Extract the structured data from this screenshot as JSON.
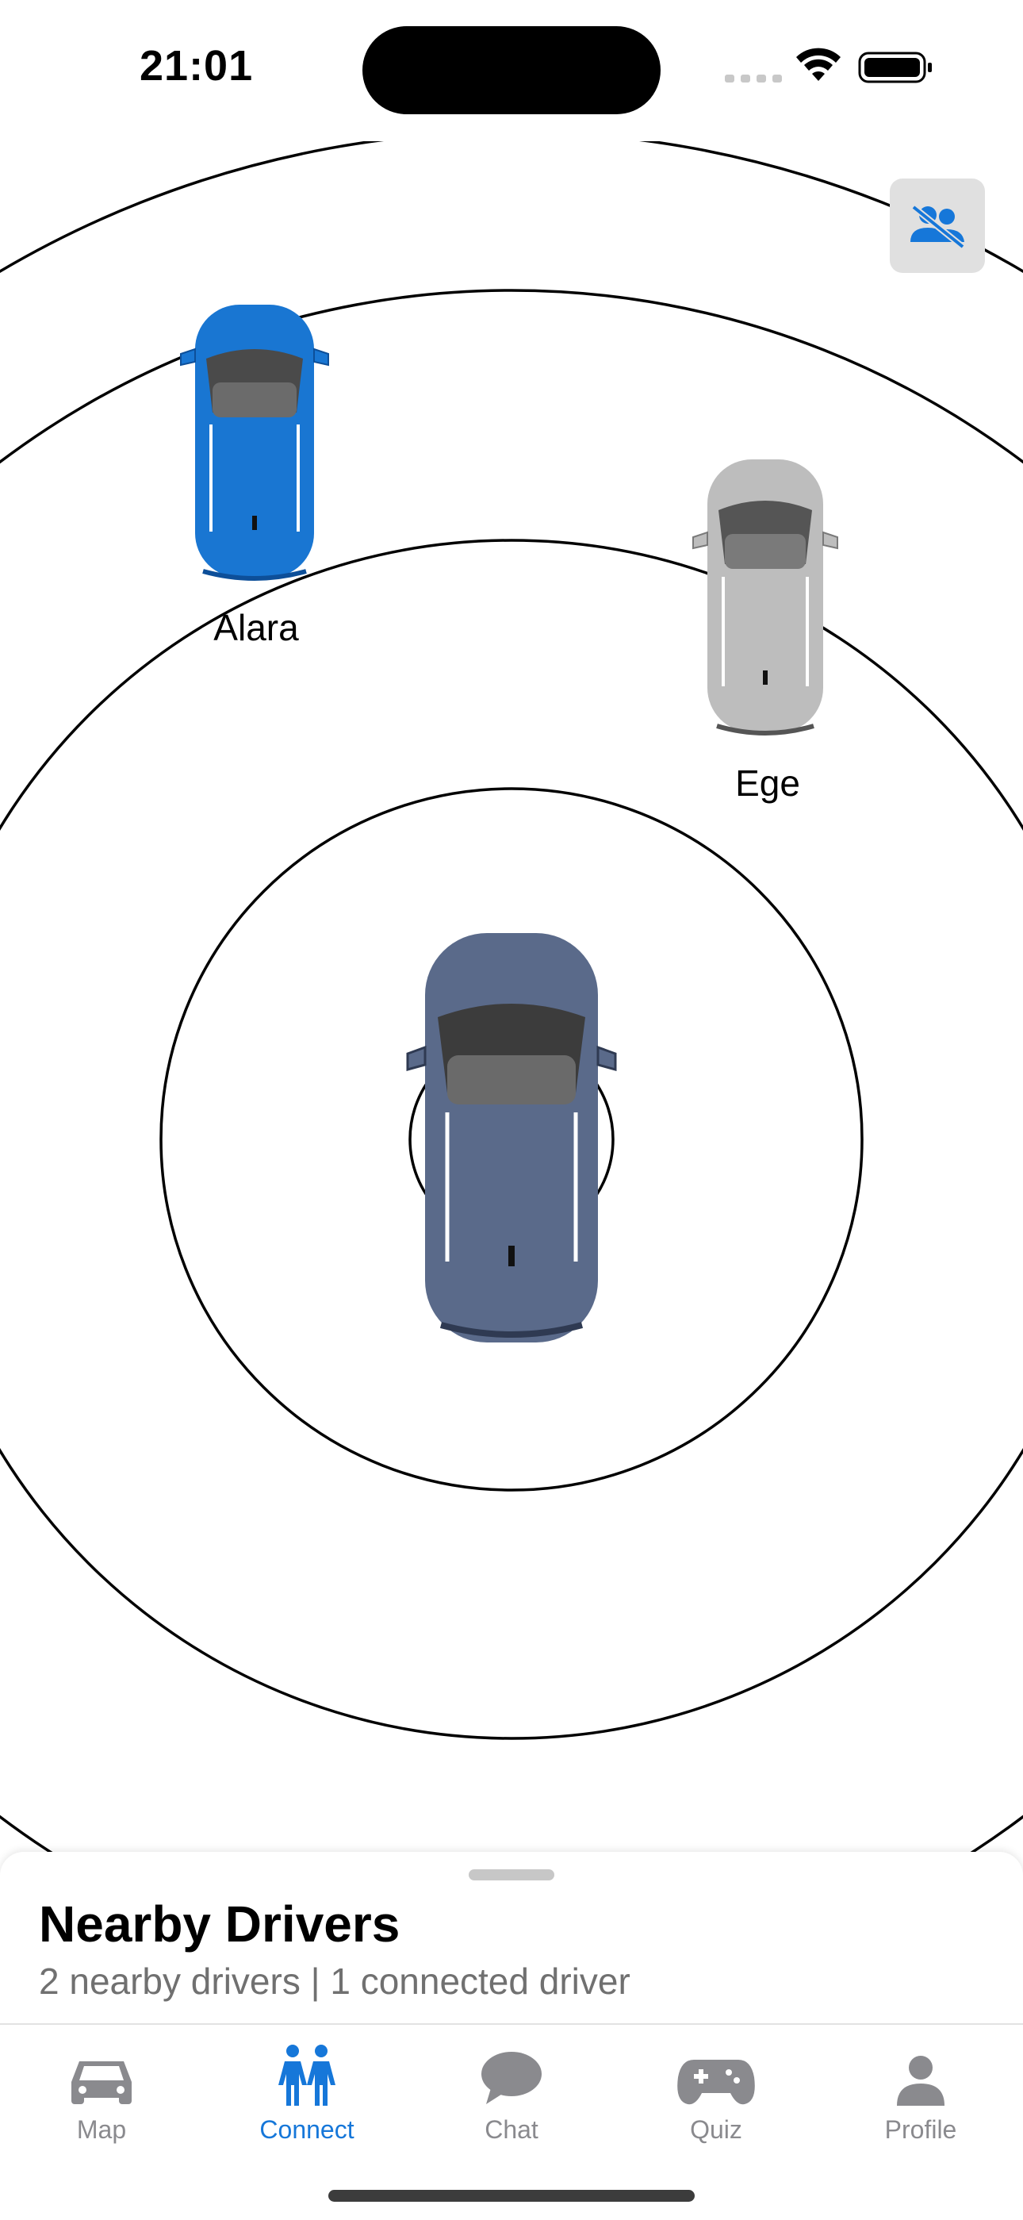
{
  "status_bar": {
    "time": "21:01"
  },
  "radar": {
    "my_car_color": "#5a6a8a",
    "ring_color": "#000000"
  },
  "nearby": [
    {
      "name": "Alara",
      "car_color": "#1976d2"
    },
    {
      "name": "Ege",
      "car_color": "#bdbdbd"
    }
  ],
  "sheet": {
    "title": "Nearby Drivers",
    "subtitle": "2 nearby drivers | 1 connected driver"
  },
  "tabs": [
    {
      "label": "Map",
      "icon": "car-icon"
    },
    {
      "label": "Connect",
      "icon": "people-icon",
      "active": true
    },
    {
      "label": "Chat",
      "icon": "chat-bubble-icon"
    },
    {
      "label": "Quiz",
      "icon": "game-controller-icon"
    },
    {
      "label": "Profile",
      "icon": "person-icon"
    }
  ],
  "colors": {
    "accent": "#1677d9",
    "inactive_tab": "#8a8a8e"
  }
}
